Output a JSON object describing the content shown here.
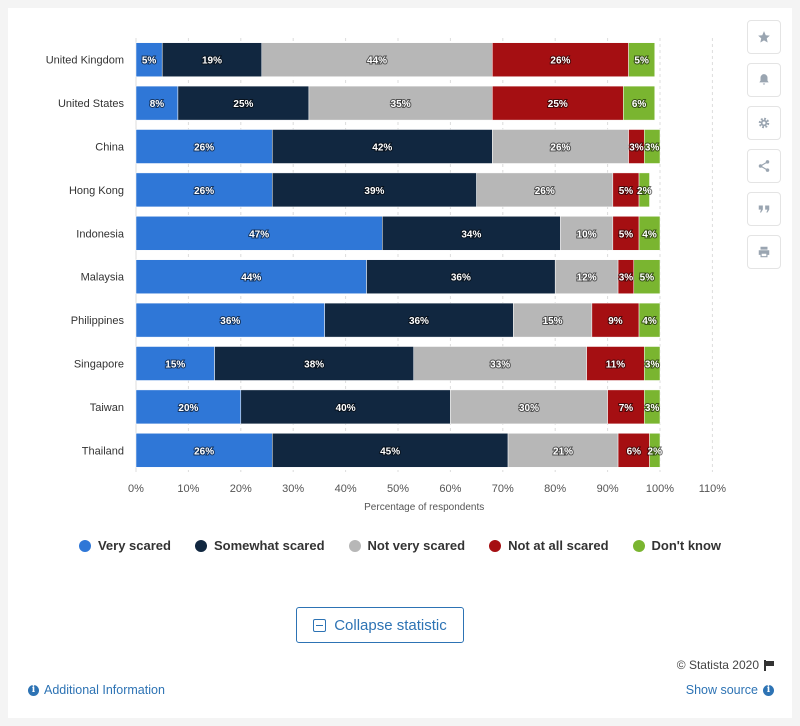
{
  "chart_data": {
    "type": "bar",
    "orientation": "horizontal",
    "stacked": true,
    "categories": [
      "United Kingdom",
      "United States",
      "China",
      "Hong Kong",
      "Indonesia",
      "Malaysia",
      "Philippines",
      "Singapore",
      "Taiwan",
      "Thailand"
    ],
    "series": [
      {
        "name": "Very scared",
        "color": "#2f77d7",
        "values": [
          5,
          8,
          26,
          26,
          47,
          44,
          36,
          15,
          20,
          26
        ]
      },
      {
        "name": "Somewhat scared",
        "color": "#112740",
        "values": [
          19,
          25,
          42,
          39,
          34,
          36,
          36,
          38,
          40,
          45
        ]
      },
      {
        "name": "Not very scared",
        "color": "#b7b7b7",
        "values": [
          44,
          35,
          26,
          26,
          10,
          12,
          15,
          33,
          30,
          21
        ]
      },
      {
        "name": "Not at all scared",
        "color": "#a50f12",
        "values": [
          26,
          25,
          3,
          5,
          5,
          3,
          9,
          11,
          7,
          6
        ]
      },
      {
        "name": "Don't know",
        "color": "#7ab530",
        "values": [
          5,
          6,
          3,
          2,
          4,
          5,
          4,
          3,
          3,
          2
        ]
      }
    ],
    "xlabel": "Percentage of respondents",
    "xlim": [
      0,
      110
    ],
    "xticks": [
      "0%",
      "10%",
      "20%",
      "30%",
      "40%",
      "50%",
      "60%",
      "70%",
      "80%",
      "90%",
      "100%",
      "110%"
    ],
    "value_suffix": "%",
    "grid": true,
    "legend_position": "bottom"
  },
  "toolbar": {
    "icons": [
      "star-icon",
      "bell-icon",
      "gear-icon",
      "share-icon",
      "quote-icon",
      "print-icon"
    ]
  },
  "collapse_label": "Collapse statistic",
  "credit": "© Statista 2020",
  "additional_info": "Additional Information",
  "show_source": "Show source"
}
